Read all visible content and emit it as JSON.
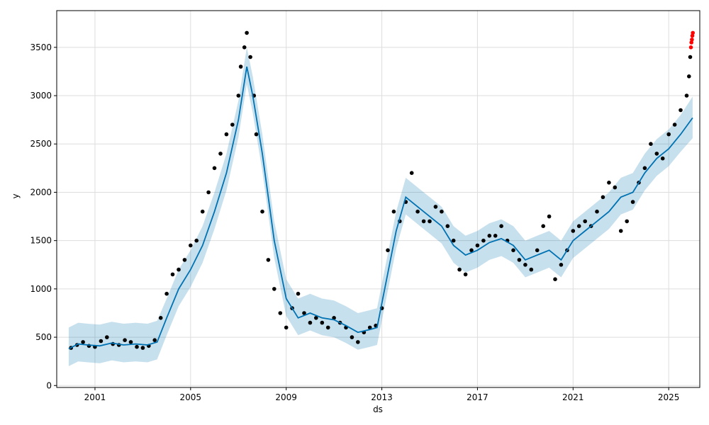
{
  "chart_data": {
    "type": "scatter",
    "title": "",
    "xlabel": "ds",
    "ylabel": "y",
    "xlim": [
      1999.4,
      2026.3
    ],
    "ylim": [
      -20,
      3880
    ],
    "grid": true,
    "x_ticks": [
      {
        "value": 2001,
        "label": "2001"
      },
      {
        "value": 2005,
        "label": "2005"
      },
      {
        "value": 2009,
        "label": "2009"
      },
      {
        "value": 2013,
        "label": "2013"
      },
      {
        "value": 2017,
        "label": "2017"
      },
      {
        "value": 2021,
        "label": "2021"
      },
      {
        "value": 2025,
        "label": "2025"
      }
    ],
    "y_ticks": [
      {
        "value": 0,
        "label": "0"
      },
      {
        "value": 500,
        "label": "500"
      },
      {
        "value": 1000,
        "label": "1000"
      },
      {
        "value": 1500,
        "label": "1500"
      },
      {
        "value": 2000,
        "label": "2000"
      },
      {
        "value": 2500,
        "label": "2500"
      },
      {
        "value": 3000,
        "label": "3000"
      },
      {
        "value": 3500,
        "label": "3500"
      }
    ],
    "colors": {
      "observed": "#000000",
      "forecast_line": "#0072B2",
      "uncertainty_band": "#0072B2",
      "recent_points": "#ff0000",
      "grid": "#dddddd"
    },
    "observed_points": {
      "x": [
        2000.0,
        2000.25,
        2000.5,
        2000.75,
        2001.0,
        2001.25,
        2001.5,
        2001.75,
        2002.0,
        2002.25,
        2002.5,
        2002.75,
        2003.0,
        2003.25,
        2003.5,
        2003.75,
        2004.0,
        2004.25,
        2004.5,
        2004.75,
        2005.0,
        2005.25,
        2005.5,
        2005.75,
        2006.0,
        2006.25,
        2006.5,
        2006.75,
        2007.0,
        2007.1,
        2007.25,
        2007.35,
        2007.5,
        2007.65,
        2007.75,
        2008.0,
        2008.25,
        2008.5,
        2008.75,
        2009.0,
        2009.25,
        2009.5,
        2009.75,
        2010.0,
        2010.25,
        2010.5,
        2010.75,
        2011.0,
        2011.25,
        2011.5,
        2011.75,
        2012.0,
        2012.25,
        2012.5,
        2012.75,
        2013.0,
        2013.25,
        2013.5,
        2013.75,
        2014.0,
        2014.25,
        2014.5,
        2014.75,
        2015.0,
        2015.25,
        2015.5,
        2015.75,
        2016.0,
        2016.25,
        2016.5,
        2016.75,
        2017.0,
        2017.25,
        2017.5,
        2017.75,
        2018.0,
        2018.25,
        2018.5,
        2018.75,
        2019.0,
        2019.25,
        2019.5,
        2019.75,
        2020.0,
        2020.25,
        2020.5,
        2020.75,
        2021.0,
        2021.25,
        2021.5,
        2021.75,
        2022.0,
        2022.25,
        2022.5,
        2022.75,
        2023.0,
        2023.25,
        2023.5,
        2023.75,
        2024.0,
        2024.25,
        2024.5,
        2024.75,
        2025.0,
        2025.25,
        2025.5,
        2025.75,
        2025.85,
        2025.9
      ],
      "y": [
        390,
        420,
        450,
        410,
        400,
        460,
        500,
        430,
        420,
        470,
        450,
        400,
        390,
        410,
        470,
        700,
        950,
        1150,
        1200,
        1300,
        1450,
        1500,
        1800,
        2000,
        2250,
        2400,
        2600,
        2700,
        3000,
        3300,
        3500,
        3650,
        3400,
        3000,
        2600,
        1800,
        1300,
        1000,
        750,
        600,
        800,
        950,
        750,
        650,
        700,
        650,
        600,
        700,
        650,
        600,
        500,
        450,
        550,
        600,
        620,
        800,
        1400,
        1800,
        1700,
        1900,
        2200,
        1800,
        1700,
        1700,
        1850,
        1800,
        1650,
        1500,
        1200,
        1150,
        1400,
        1450,
        1500,
        1550,
        1550,
        1650,
        1500,
        1400,
        1300,
        1250,
        1200,
        1400,
        1650,
        1750,
        1100,
        1250,
        1400,
        1600,
        1650,
        1700,
        1650,
        1800,
        1950,
        2100,
        2050,
        1600,
        1700,
        1900,
        2100,
        2250,
        2500,
        2400,
        2350,
        2600,
        2700,
        2850,
        3000,
        3200,
        3400
      ]
    },
    "recent_points": {
      "x": [
        2025.93,
        2025.95,
        2025.97,
        2025.99,
        2026.01
      ],
      "y": [
        3500,
        3550,
        3580,
        3620,
        3650
      ]
    },
    "forecast": {
      "x": [
        1999.9,
        2000.3,
        2000.7,
        2001.2,
        2001.7,
        2002.2,
        2002.7,
        2003.2,
        2003.6,
        2004.0,
        2004.5,
        2005.0,
        2005.5,
        2006.0,
        2006.5,
        2007.0,
        2007.35,
        2007.6,
        2008.0,
        2008.5,
        2009.0,
        2009.5,
        2010.0,
        2010.5,
        2011.0,
        2011.5,
        2012.0,
        2012.5,
        2012.8,
        2013.2,
        2013.6,
        2014.0,
        2014.5,
        2015.0,
        2015.5,
        2016.0,
        2016.5,
        2017.0,
        2017.5,
        2018.0,
        2018.5,
        2019.0,
        2019.5,
        2020.0,
        2020.5,
        2021.0,
        2021.5,
        2022.0,
        2022.5,
        2023.0,
        2023.5,
        2024.0,
        2024.5,
        2025.0,
        2025.5,
        2026.0
      ],
      "yhat": [
        380,
        430,
        420,
        410,
        440,
        420,
        430,
        420,
        450,
        700,
        1000,
        1200,
        1450,
        1800,
        2200,
        2750,
        3300,
        3000,
        2400,
        1500,
        900,
        700,
        750,
        700,
        680,
        620,
        550,
        580,
        600,
        1100,
        1600,
        1950,
        1850,
        1750,
        1650,
        1450,
        1350,
        1400,
        1480,
        1520,
        1450,
        1300,
        1350,
        1400,
        1300,
        1500,
        1600,
        1700,
        1800,
        1950,
        2000,
        2200,
        2350,
        2450,
        2600,
        2770
      ],
      "yhat_lower": [
        200,
        250,
        240,
        230,
        260,
        240,
        250,
        240,
        270,
        520,
        820,
        1020,
        1270,
        1620,
        2020,
        2570,
        3120,
        2820,
        2220,
        1320,
        720,
        520,
        570,
        520,
        500,
        440,
        370,
        400,
        420,
        920,
        1420,
        1770,
        1670,
        1570,
        1470,
        1270,
        1170,
        1220,
        1300,
        1340,
        1270,
        1120,
        1170,
        1220,
        1120,
        1320,
        1420,
        1520,
        1620,
        1770,
        1820,
        2020,
        2170,
        2270,
        2420,
        2560
      ],
      "yhat_upper": [
        600,
        650,
        640,
        630,
        660,
        640,
        650,
        640,
        670,
        900,
        1200,
        1400,
        1650,
        2000,
        2400,
        2950,
        3500,
        3200,
        2600,
        1700,
        1100,
        900,
        950,
        900,
        880,
        820,
        750,
        780,
        800,
        1300,
        1800,
        2150,
        2050,
        1950,
        1850,
        1650,
        1550,
        1600,
        1680,
        1720,
        1650,
        1500,
        1550,
        1600,
        1500,
        1700,
        1800,
        1900,
        2000,
        2150,
        2200,
        2400,
        2550,
        2650,
        2800,
        2990
      ]
    }
  }
}
